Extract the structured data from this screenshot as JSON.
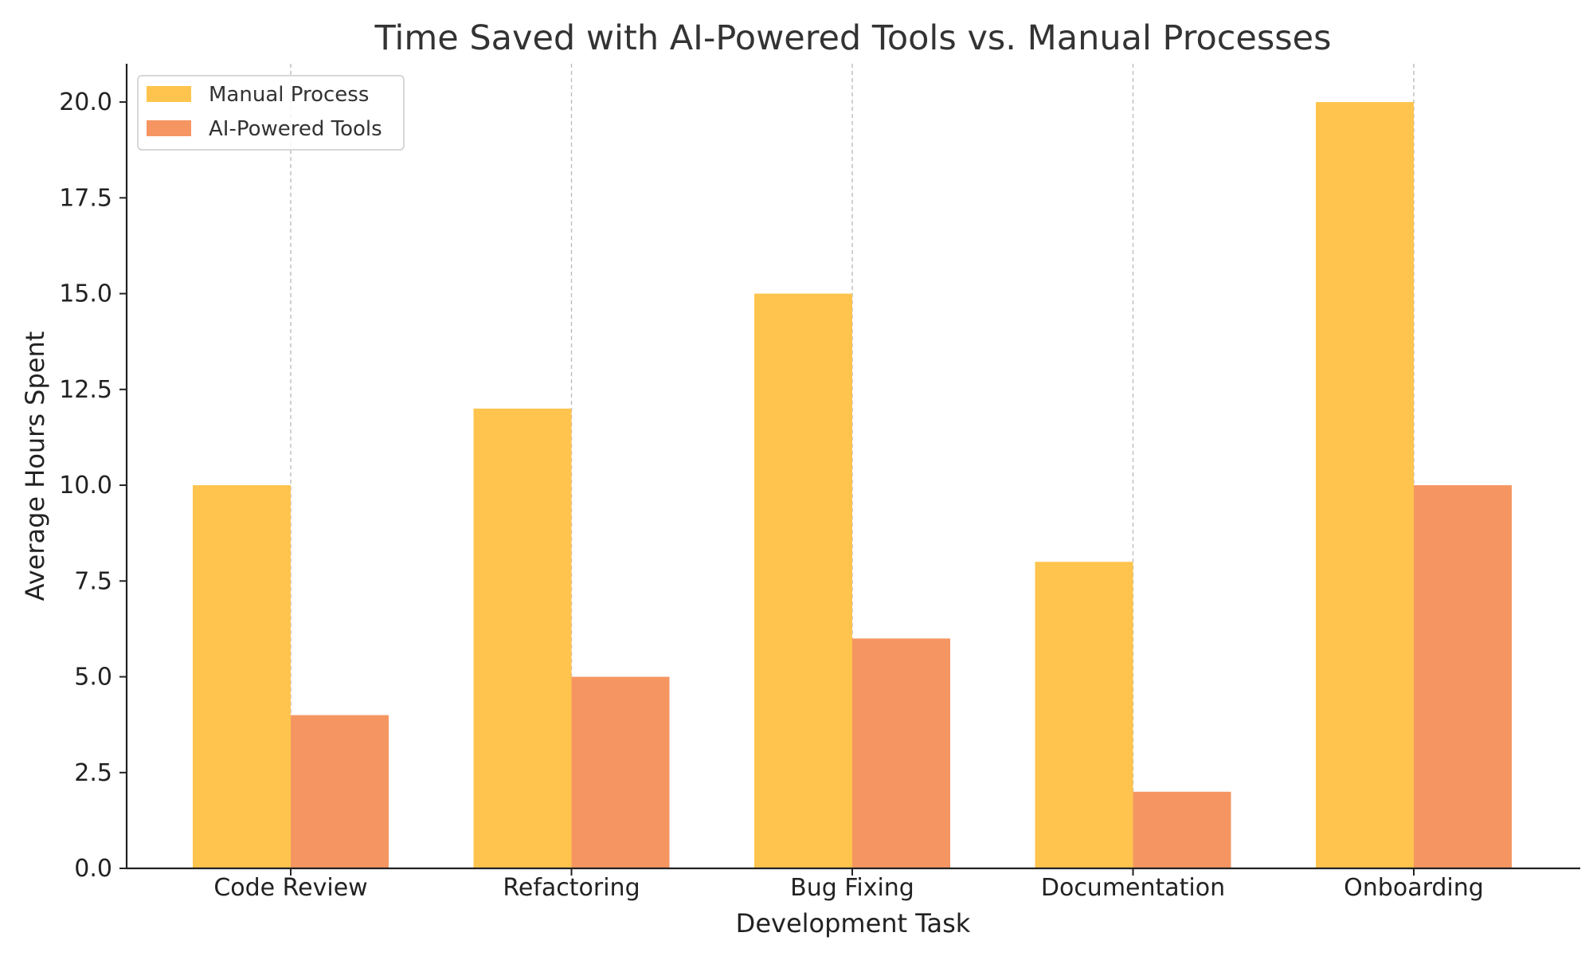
{
  "chart_data": {
    "type": "bar",
    "title": "Time Saved with AI-Powered Tools vs. Manual Processes",
    "xlabel": "Development Task",
    "ylabel": "Average Hours Spent",
    "categories": [
      "Code Review",
      "Refactoring",
      "Bug Fixing",
      "Documentation",
      "Onboarding"
    ],
    "series": [
      {
        "name": "Manual Process",
        "values": [
          10,
          12,
          15,
          8,
          20
        ],
        "color": "#FFC44D"
      },
      {
        "name": "AI-Powered Tools",
        "values": [
          4,
          5,
          6,
          2,
          10
        ],
        "color": "#F59662"
      }
    ],
    "ylim": [
      0,
      21
    ],
    "yticks": [
      0,
      2.5,
      5,
      7.5,
      10,
      12.5,
      15,
      17.5,
      20
    ],
    "ytick_labels": [
      "0.0",
      "2.5",
      "5.0",
      "7.5",
      "10.0",
      "12.5",
      "15.0",
      "17.5",
      "20.0"
    ],
    "grid": "x-dashed",
    "legend_position": "top-left"
  }
}
